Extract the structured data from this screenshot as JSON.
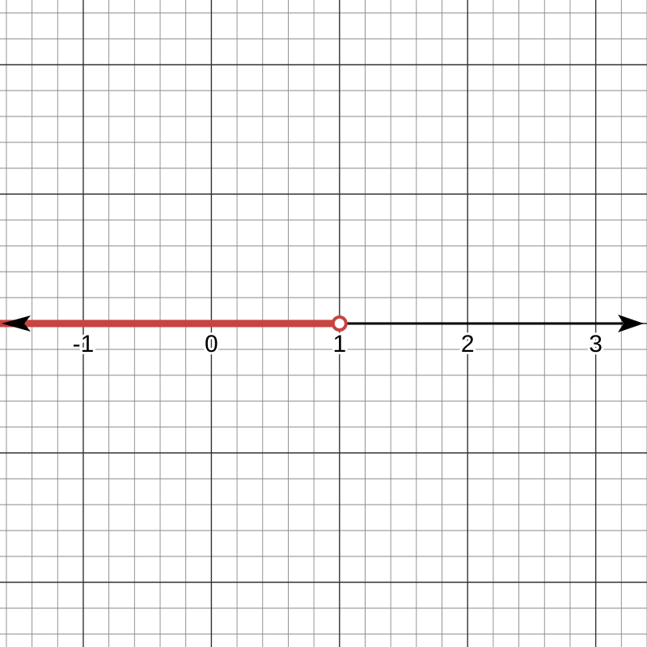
{
  "chart_data": {
    "type": "number-line",
    "xlim": [
      -1.65,
      3.4
    ],
    "ylim": [
      -2.5,
      2.5
    ],
    "grid": true,
    "tick_labels": [
      "-1",
      "0",
      "1",
      "2",
      "3"
    ],
    "ticks": [
      -1,
      0,
      1,
      2,
      3
    ],
    "shaded_interval": {
      "from": "-infinity",
      "to": 1,
      "endpoint": "open"
    },
    "colors": {
      "axis": "#000000",
      "shaded": "#c74440",
      "grid_major": "#333333",
      "grid_minor": "#888888"
    }
  }
}
